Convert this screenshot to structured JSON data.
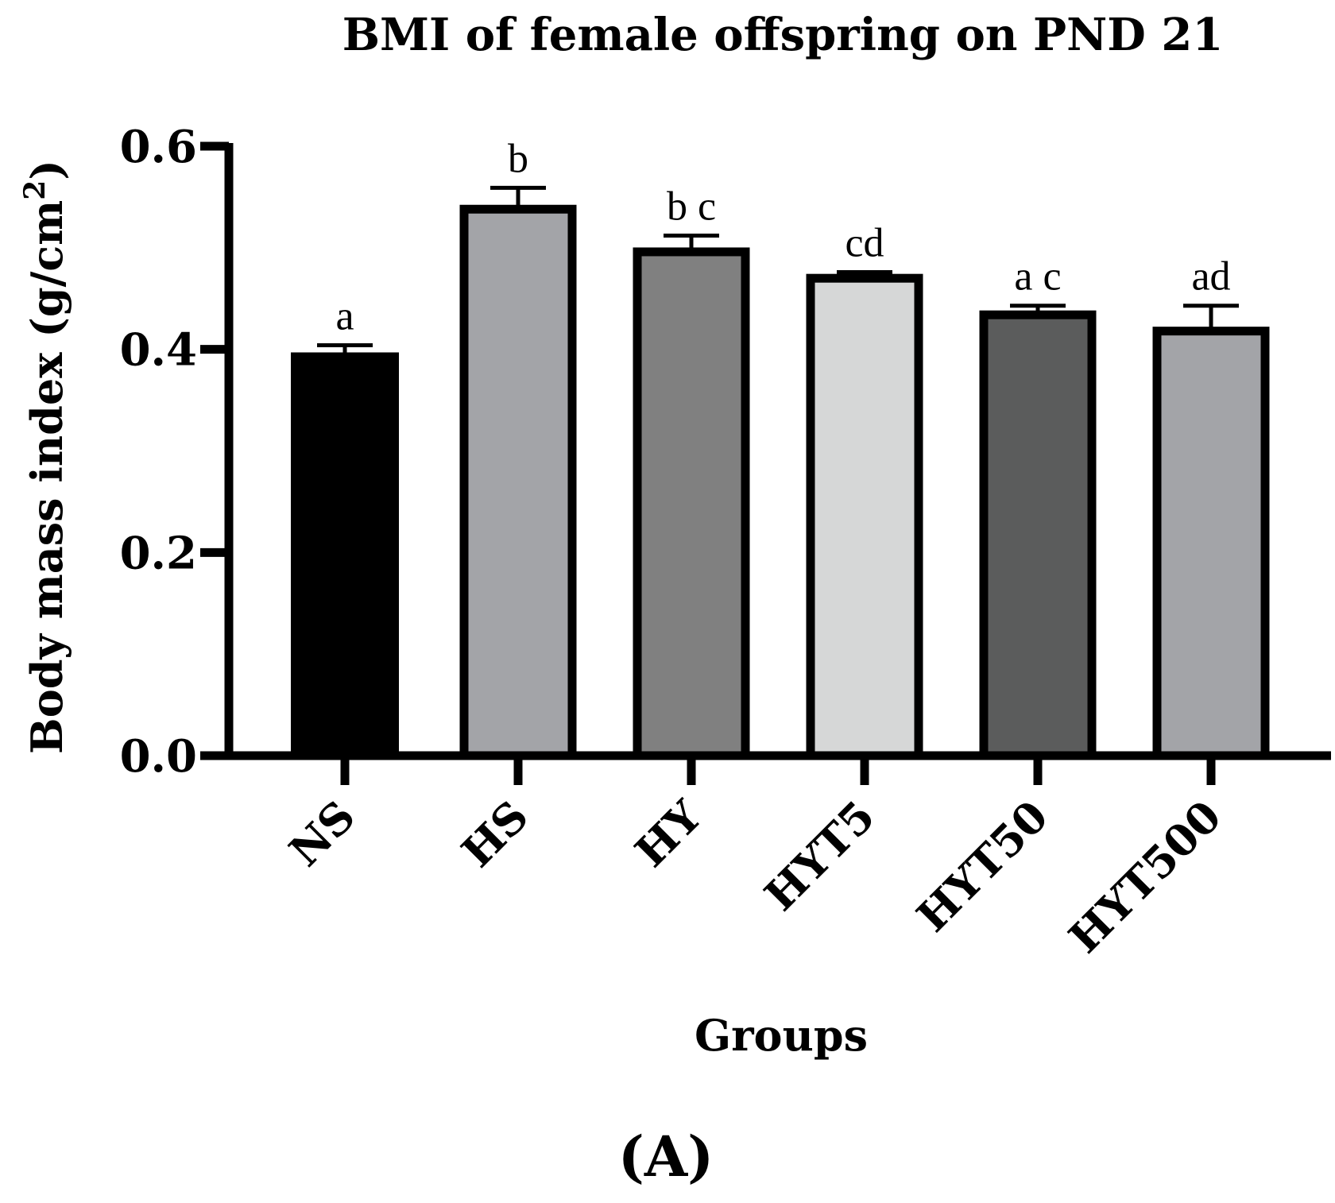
{
  "chart_data": {
    "type": "bar",
    "title": "BMI of female offspring on PND 21",
    "xlabel": "Groups",
    "ylabel": "Body mass index (g/cm",
    "ylabel_sup": "2",
    "ylabel_close": ")",
    "ylim": [
      0,
      0.6
    ],
    "yticks": [
      "0.0",
      "0.2",
      "0.4",
      "0.6"
    ],
    "ytick_values": [
      0.0,
      0.2,
      0.4,
      0.6
    ],
    "categories": [
      "NS",
      "HS",
      "HY",
      "HYT5",
      "HYT50",
      "HYT500"
    ],
    "values": [
      0.397,
      0.538,
      0.496,
      0.47,
      0.434,
      0.418
    ],
    "errors": [
      0.007,
      0.021,
      0.016,
      0.006,
      0.009,
      0.025
    ],
    "significance": [
      "a",
      "b",
      "b c",
      "cd",
      "a c",
      "ad"
    ],
    "colors": [
      "#000000",
      "#a3a4a8",
      "#808080",
      "#d6d7d7",
      "#5b5c5c",
      "#a3a4a8"
    ],
    "panel_label": "(A)"
  }
}
